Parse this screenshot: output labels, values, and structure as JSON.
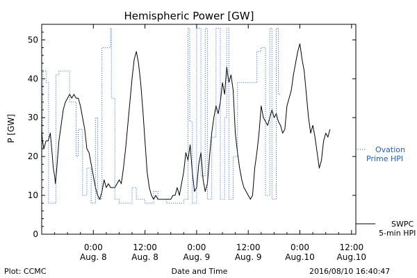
{
  "chart_data": {
    "type": "line",
    "title": "Hemispheric Power [GW]",
    "xlabel": "Date and Time",
    "ylabel": "P [GW]",
    "ylim": [
      0,
      54
    ],
    "yticks": [
      0,
      10,
      20,
      30,
      40,
      50
    ],
    "x_range_hours": [
      -12,
      61
    ],
    "xticks": [
      {
        "hour": 0,
        "time": "0:00",
        "date": "Aug. 8"
      },
      {
        "hour": 12,
        "time": "12:00",
        "date": "Aug. 8"
      },
      {
        "hour": 24,
        "time": "0:00",
        "date": "Aug. 9"
      },
      {
        "hour": 36,
        "time": "12:00",
        "date": "Aug. 9"
      },
      {
        "hour": 48,
        "time": "0:00",
        "date": "Aug.10"
      },
      {
        "hour": 60,
        "time": "12:00",
        "date": "Aug.10"
      }
    ],
    "series": [
      {
        "name_line1": "SWPC",
        "name_line2": "5-min HPI",
        "color": "#000000",
        "style": "solid",
        "points": [
          [
            -12.0,
            27
          ],
          [
            -11.8,
            24
          ],
          [
            -11.5,
            22
          ],
          [
            -11.0,
            24
          ],
          [
            -10.5,
            24
          ],
          [
            -10.0,
            26
          ],
          [
            -9.6,
            21
          ],
          [
            -9.3,
            17
          ],
          [
            -9.0,
            15
          ],
          [
            -8.8,
            13
          ],
          [
            -8.5,
            17
          ],
          [
            -8.0,
            24
          ],
          [
            -7.5,
            28
          ],
          [
            -7.0,
            32
          ],
          [
            -6.5,
            34
          ],
          [
            -6.0,
            35
          ],
          [
            -5.5,
            36
          ],
          [
            -5.0,
            35
          ],
          [
            -4.5,
            36
          ],
          [
            -4.0,
            35
          ],
          [
            -3.5,
            35
          ],
          [
            -3.0,
            33
          ],
          [
            -2.5,
            30
          ],
          [
            -2.0,
            27
          ],
          [
            -1.5,
            22
          ],
          [
            -1.0,
            21
          ],
          [
            -0.5,
            18
          ],
          [
            0.0,
            15
          ],
          [
            0.5,
            12
          ],
          [
            1.0,
            10
          ],
          [
            1.5,
            9
          ],
          [
            2.0,
            11
          ],
          [
            2.5,
            14
          ],
          [
            3.0,
            12
          ],
          [
            3.5,
            13
          ],
          [
            4.0,
            12
          ],
          [
            4.5,
            12
          ],
          [
            5.0,
            12
          ],
          [
            5.5,
            13
          ],
          [
            6.0,
            14
          ],
          [
            6.5,
            13
          ],
          [
            7.0,
            17
          ],
          [
            7.5,
            22
          ],
          [
            8.0,
            28
          ],
          [
            8.5,
            34
          ],
          [
            9.0,
            40
          ],
          [
            9.5,
            45
          ],
          [
            10.0,
            47
          ],
          [
            10.5,
            44
          ],
          [
            11.0,
            39
          ],
          [
            11.5,
            32
          ],
          [
            12.0,
            24
          ],
          [
            12.5,
            16
          ],
          [
            13.0,
            12
          ],
          [
            13.5,
            10
          ],
          [
            14.0,
            9
          ],
          [
            14.5,
            10
          ],
          [
            15.0,
            9
          ],
          [
            15.5,
            9
          ],
          [
            16.0,
            9
          ],
          [
            16.5,
            9
          ],
          [
            17.0,
            9
          ],
          [
            17.5,
            9
          ],
          [
            18.0,
            9
          ],
          [
            18.5,
            10
          ],
          [
            19.0,
            10
          ],
          [
            19.5,
            12
          ],
          [
            20.0,
            10
          ],
          [
            20.5,
            13
          ],
          [
            21.0,
            16
          ],
          [
            21.5,
            21
          ],
          [
            22.0,
            19
          ],
          [
            22.5,
            23
          ],
          [
            23.0,
            16
          ],
          [
            23.5,
            11
          ],
          [
            24.0,
            12
          ],
          [
            24.5,
            18
          ],
          [
            25.0,
            21
          ],
          [
            25.5,
            14
          ],
          [
            26.0,
            11
          ],
          [
            26.5,
            13
          ],
          [
            27.0,
            20
          ],
          [
            27.5,
            26
          ],
          [
            28.0,
            30
          ],
          [
            28.5,
            33
          ],
          [
            29.0,
            31
          ],
          [
            29.5,
            34
          ],
          [
            30.0,
            39
          ],
          [
            30.5,
            36
          ],
          [
            31.0,
            43
          ],
          [
            31.5,
            39
          ],
          [
            32.0,
            41
          ],
          [
            32.5,
            37
          ],
          [
            33.0,
            26
          ],
          [
            33.5,
            21
          ],
          [
            34.0,
            17
          ],
          [
            34.5,
            14
          ],
          [
            35.0,
            12
          ],
          [
            35.5,
            11
          ],
          [
            36.0,
            10
          ],
          [
            36.5,
            9
          ],
          [
            37.0,
            10
          ],
          [
            37.5,
            17
          ],
          [
            38.0,
            21
          ],
          [
            38.5,
            26
          ],
          [
            39.0,
            33
          ],
          [
            39.5,
            30
          ],
          [
            40.0,
            29
          ],
          [
            40.5,
            28
          ],
          [
            41.0,
            30
          ],
          [
            41.5,
            32
          ],
          [
            42.0,
            30
          ],
          [
            42.5,
            31
          ],
          [
            43.0,
            29
          ],
          [
            43.5,
            28
          ],
          [
            44.0,
            26
          ],
          [
            44.5,
            27
          ],
          [
            45.0,
            33
          ],
          [
            45.5,
            35
          ],
          [
            46.0,
            37
          ],
          [
            46.5,
            41
          ],
          [
            47.0,
            44
          ],
          [
            47.5,
            47
          ],
          [
            48.0,
            49
          ],
          [
            48.5,
            45
          ],
          [
            49.0,
            42
          ],
          [
            49.5,
            36
          ],
          [
            50.0,
            30
          ],
          [
            50.5,
            26
          ],
          [
            51.0,
            28
          ],
          [
            51.5,
            25
          ],
          [
            52.0,
            21
          ],
          [
            52.5,
            17
          ],
          [
            53.0,
            19
          ],
          [
            53.5,
            24
          ],
          [
            54.0,
            26
          ],
          [
            54.5,
            25
          ],
          [
            55.0,
            27
          ]
        ]
      },
      {
        "name_line1": "Ovation",
        "name_line2": "Prime HPI",
        "color": "#1f5fc8",
        "style": "dotted",
        "points": [
          [
            -12.0,
            12
          ],
          [
            -11.7,
            42
          ],
          [
            -10.9,
            42
          ],
          [
            -10.9,
            39
          ],
          [
            -10.4,
            39
          ],
          [
            -10.4,
            8
          ],
          [
            -8.7,
            8
          ],
          [
            -8.7,
            41
          ],
          [
            -8.0,
            41
          ],
          [
            -8.0,
            42
          ],
          [
            -5.5,
            42
          ],
          [
            -5.5,
            34
          ],
          [
            -4.0,
            34
          ],
          [
            -4.0,
            20
          ],
          [
            -3.5,
            20
          ],
          [
            -3.5,
            27
          ],
          [
            -2.5,
            27
          ],
          [
            -2.5,
            10
          ],
          [
            -1.5,
            10
          ],
          [
            -1.5,
            17
          ],
          [
            -0.5,
            17
          ],
          [
            -0.5,
            8
          ],
          [
            0.5,
            8
          ],
          [
            0.5,
            30
          ],
          [
            1.0,
            30
          ],
          [
            1.0,
            9
          ],
          [
            2.0,
            9
          ],
          [
            2.0,
            48
          ],
          [
            4.0,
            48
          ],
          [
            4.0,
            53
          ],
          [
            4.2,
            53
          ],
          [
            4.2,
            35
          ],
          [
            5.0,
            35
          ],
          [
            5.0,
            9
          ],
          [
            6.0,
            9
          ],
          [
            6.0,
            8
          ],
          [
            9.0,
            8
          ],
          [
            9.0,
            12
          ],
          [
            10.0,
            12
          ],
          [
            10.0,
            9
          ],
          [
            12.0,
            9
          ],
          [
            12.0,
            8
          ],
          [
            14.0,
            8
          ],
          [
            14.0,
            11
          ],
          [
            15.0,
            11
          ],
          [
            15.0,
            9
          ],
          [
            17.0,
            9
          ],
          [
            17.0,
            8
          ],
          [
            21.0,
            8
          ],
          [
            21.0,
            9
          ],
          [
            22.0,
            9
          ],
          [
            22.0,
            53
          ],
          [
            22.4,
            53
          ],
          [
            22.4,
            29
          ],
          [
            23.0,
            29
          ],
          [
            23.0,
            8
          ],
          [
            24.0,
            8
          ],
          [
            24.0,
            53
          ],
          [
            25.0,
            53
          ],
          [
            25.0,
            15
          ],
          [
            26.0,
            15
          ],
          [
            26.0,
            53
          ],
          [
            26.5,
            53
          ],
          [
            26.5,
            9
          ],
          [
            27.5,
            9
          ],
          [
            27.5,
            25
          ],
          [
            28.5,
            25
          ],
          [
            28.5,
            53
          ],
          [
            29.5,
            53
          ],
          [
            29.5,
            9
          ],
          [
            30.5,
            9
          ],
          [
            30.5,
            30
          ],
          [
            31.0,
            30
          ],
          [
            31.0,
            53
          ],
          [
            31.5,
            53
          ],
          [
            31.5,
            9
          ],
          [
            32.5,
            9
          ],
          [
            32.5,
            20
          ],
          [
            33.5,
            20
          ],
          [
            33.5,
            39
          ],
          [
            38.0,
            39
          ],
          [
            38.0,
            47
          ],
          [
            39.0,
            47
          ],
          [
            39.0,
            48
          ],
          [
            40.0,
            48
          ],
          [
            40.0,
            10
          ],
          [
            41.0,
            10
          ],
          [
            41.0,
            53
          ],
          [
            41.5,
            53
          ],
          [
            41.5,
            9
          ],
          [
            42.5,
            9
          ],
          [
            42.5,
            53
          ],
          [
            43.0,
            53
          ],
          [
            43.0,
            36
          ],
          [
            43.7,
            36
          ]
        ]
      }
    ]
  },
  "footer": {
    "left": "Plot: CCMC",
    "right": "2016/08/10 16:40:47"
  }
}
